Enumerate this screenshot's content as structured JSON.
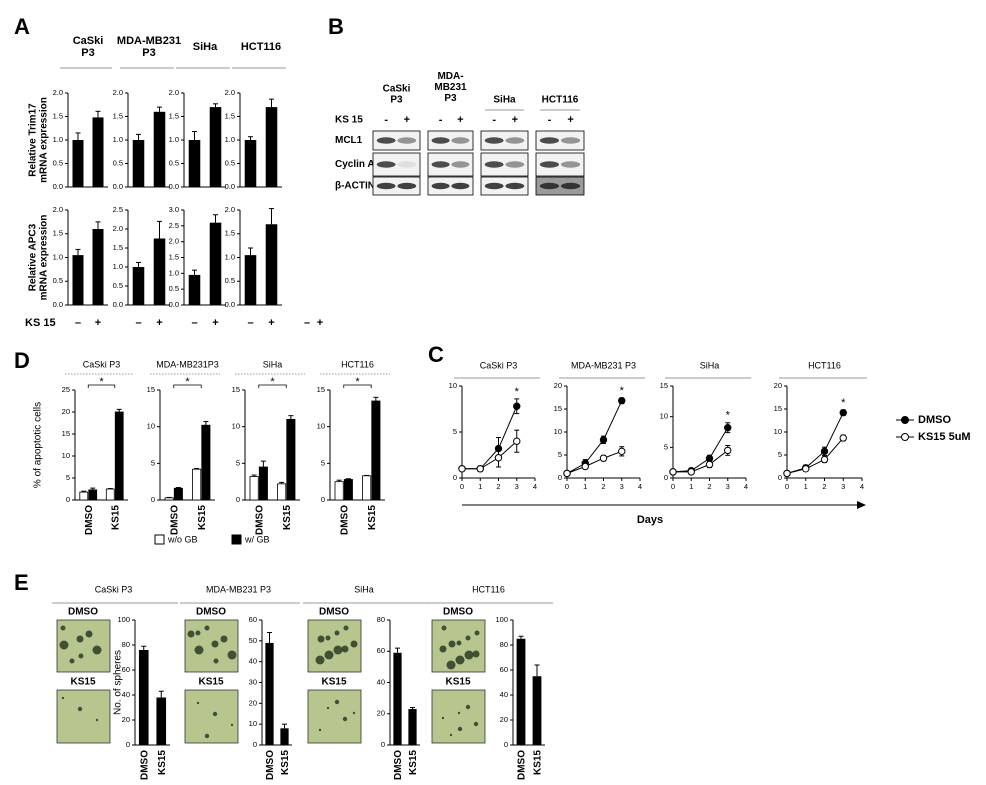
{
  "panel_labels": [
    "A",
    "B",
    "C",
    "D",
    "E"
  ],
  "panel_a": {
    "treatment_label": "KS 15",
    "stray_signs": [
      "–",
      "+"
    ]
  },
  "panel_c": {
    "xlabel": "Days"
  },
  "blot": {
    "columns": [
      "CaSki\nP3",
      "MDA-\nMB231\nP3",
      "SiHa",
      "HCT116"
    ],
    "treatment": "KS 15",
    "signs": [
      "-",
      "+"
    ],
    "rows": [
      "MCL1",
      "Cyclin A",
      "β-ACTIN"
    ]
  },
  "chart_data": [
    {
      "type": "bar",
      "title": "CaSki\nP3",
      "ylabel": "Relative Trim17\nmRNA expression",
      "values": [
        1.0,
        1.48
      ],
      "errors": [
        0.15,
        0.13
      ],
      "color": "#000000",
      "ylim": [
        0,
        2
      ],
      "yticks": [
        {
          "value": 0,
          "label": "0.0"
        },
        0.5,
        {
          "value": 1,
          "label": "1.0"
        },
        1.5,
        {
          "value": 2,
          "label": "2.0"
        }
      ]
    },
    {
      "type": "bar",
      "title": "MDA-MB231\nP3",
      "values": [
        1.0,
        1.6
      ],
      "errors": [
        0.12,
        0.1
      ],
      "color": "#000000",
      "ylim": [
        0,
        2
      ],
      "yticks": [
        {
          "value": 0,
          "label": "0.0"
        },
        0.5,
        {
          "value": 1,
          "label": "1.0"
        },
        1.5,
        {
          "value": 2,
          "label": "2.0"
        }
      ]
    },
    {
      "type": "bar",
      "title": "SiHa",
      "values": [
        1.0,
        1.7
      ],
      "errors": [
        0.18,
        0.07
      ],
      "color": "#000000",
      "ylim": [
        0,
        2
      ],
      "yticks": [
        {
          "value": 0,
          "label": "0.0"
        },
        0.5,
        {
          "value": 1,
          "label": "1.0"
        },
        1.5,
        {
          "value": 2,
          "label": "2.0"
        }
      ]
    },
    {
      "type": "bar",
      "title": "HCT116",
      "values": [
        1.0,
        1.7
      ],
      "errors": [
        0.07,
        0.17
      ],
      "color": "#000000",
      "ylim": [
        0,
        2
      ],
      "yticks": [
        {
          "value": 0,
          "label": "0.0"
        },
        0.5,
        {
          "value": 1,
          "label": "1.0"
        },
        1.5,
        {
          "value": 2,
          "label": "2.0"
        }
      ]
    },
    {
      "type": "bar",
      "ylabel": "Relative APC3\nmRNA expression",
      "categories": [
        "–",
        "+"
      ],
      "values": [
        1.05,
        1.6
      ],
      "errors": [
        0.12,
        0.15
      ],
      "color": "#000000",
      "ylim": [
        0,
        2
      ],
      "yticks": [
        {
          "value": 0,
          "label": "0.0"
        },
        0.5,
        {
          "value": 1,
          "label": "1.0"
        },
        1.5,
        {
          "value": 2,
          "label": "2.0"
        }
      ]
    },
    {
      "type": "bar",
      "categories": [
        "–",
        "+"
      ],
      "values": [
        1.0,
        1.75
      ],
      "errors": [
        0.12,
        0.45
      ],
      "color": "#000000",
      "ylim": [
        0,
        2.5
      ],
      "yticks": [
        {
          "value": 0,
          "label": "0.0"
        },
        0.5,
        {
          "value": 1,
          "label": "1.0"
        },
        1.5,
        {
          "value": 2,
          "label": "2.0"
        },
        2.5
      ]
    },
    {
      "type": "bar",
      "categories": [
        "–",
        "+"
      ],
      "values": [
        0.95,
        2.6
      ],
      "errors": [
        0.15,
        0.25
      ],
      "color": "#000000",
      "ylim": [
        0,
        3
      ],
      "yticks": [
        {
          "value": 0,
          "label": "0.0"
        },
        0.5,
        {
          "value": 1,
          "label": "1.0"
        },
        1.5,
        {
          "value": 2,
          "label": "2.0"
        },
        2.5,
        {
          "value": 3,
          "label": "3.0"
        }
      ]
    },
    {
      "type": "bar",
      "categories": [
        "–",
        "+"
      ],
      "values": [
        1.05,
        1.7
      ],
      "errors": [
        0.15,
        0.33
      ],
      "color": "#000000",
      "ylim": [
        0,
        2
      ],
      "yticks": [
        {
          "value": 0,
          "label": "0.0"
        },
        0.5,
        {
          "value": 1,
          "label": "1.0"
        },
        1.5,
        {
          "value": 2,
          "label": "2.0"
        }
      ]
    },
    {
      "type": "bar",
      "title": "CaSki P3",
      "ylabel": "% of apoptotic cells",
      "annotation": "*",
      "categories": [
        "DMSO",
        "KS15"
      ],
      "series": [
        {
          "name": "w/o GB",
          "color": "#ffffff",
          "values": [
            1.8,
            2.5
          ],
          "errors": [
            0.2,
            0.1
          ]
        },
        {
          "name": "w/  GB",
          "color": "#000000",
          "values": [
            2.3,
            20
          ],
          "errors": [
            0.4,
            0.6
          ]
        }
      ],
      "ylim": [
        0,
        25
      ],
      "yticks": [
        0,
        5,
        10,
        15,
        20,
        25
      ]
    },
    {
      "type": "bar",
      "title": "MDA-MB231P3",
      "annotation": "*",
      "categories": [
        "DMSO",
        "KS15"
      ],
      "series": [
        {
          "name": "w/o GB",
          "color": "#ffffff",
          "values": [
            0.3,
            4.2
          ],
          "errors": [
            0.05,
            0.1
          ]
        },
        {
          "name": "w/  GB",
          "color": "#000000",
          "values": [
            1.6,
            10.2
          ],
          "errors": [
            0.1,
            0.5
          ]
        }
      ],
      "ylim": [
        0,
        15
      ],
      "yticks": [
        0,
        5,
        10,
        15
      ]
    },
    {
      "type": "bar",
      "title": "SiHa",
      "annotation": "*",
      "categories": [
        "DMSO",
        "KS15"
      ],
      "series": [
        {
          "name": "w/o GB",
          "color": "#ffffff",
          "values": [
            3.2,
            2.2
          ],
          "errors": [
            0.2,
            0.2
          ]
        },
        {
          "name": "w/  GB",
          "color": "#000000",
          "values": [
            4.5,
            11
          ],
          "errors": [
            0.8,
            0.5
          ]
        }
      ],
      "ylim": [
        0,
        15
      ],
      "yticks": [
        0,
        5,
        10,
        15
      ]
    },
    {
      "type": "bar",
      "title": "HCT116",
      "annotation": "*",
      "categories": [
        "DMSO",
        "KS15"
      ],
      "series": [
        {
          "name": "w/o GB",
          "color": "#ffffff",
          "values": [
            2.5,
            3.3
          ],
          "errors": [
            0.2,
            0.05
          ]
        },
        {
          "name": "w/  GB",
          "color": "#000000",
          "values": [
            2.8,
            13.5
          ],
          "errors": [
            0.1,
            0.5
          ]
        }
      ],
      "ylim": [
        0,
        15
      ],
      "yticks": [
        0,
        5,
        10,
        15
      ]
    },
    {
      "type": "line",
      "title": "CaSki P3",
      "annotation": "*",
      "x": [
        0,
        1,
        2,
        3
      ],
      "series": [
        {
          "name": "DMSO",
          "color": "#000000",
          "marker_fill": "#000000",
          "values": [
            1,
            1,
            3.2,
            7.8
          ],
          "errors": [
            0.2,
            0.3,
            1.2,
            0.8
          ]
        },
        {
          "name": "KS15 5uM",
          "color": "#000000",
          "marker_fill": "#ffffff",
          "values": [
            1,
            1,
            2.2,
            4
          ],
          "errors": [
            0.1,
            0.2,
            1.0,
            1.2
          ]
        }
      ],
      "xlim": [
        0,
        4
      ],
      "xticks": [
        0,
        1,
        2,
        3,
        4
      ],
      "ylim": [
        0,
        10
      ],
      "yticks": [
        0,
        5,
        10
      ]
    },
    {
      "type": "line",
      "title": "MDA-MB231  P3",
      "annotation": "*",
      "x": [
        0,
        1,
        2,
        3
      ],
      "series": [
        {
          "name": "DMSO",
          "color": "#000000",
          "marker_fill": "#000000",
          "values": [
            1,
            3.2,
            8.3,
            16.8
          ],
          "errors": [
            0.3,
            0.8,
            0.8,
            0.6
          ]
        },
        {
          "name": "KS15 5uM",
          "color": "#000000",
          "marker_fill": "#ffffff",
          "values": [
            1,
            2.5,
            4.3,
            5.8
          ],
          "errors": [
            0.3,
            0.5,
            0.6,
            1.0
          ]
        }
      ],
      "xlim": [
        0,
        4
      ],
      "xticks": [
        0,
        1,
        2,
        3,
        4
      ],
      "ylim": [
        0,
        20
      ],
      "yticks": [
        0,
        5,
        10,
        15,
        20
      ]
    },
    {
      "type": "line",
      "title": "SiHa",
      "annotation": "*",
      "x": [
        0,
        1,
        2,
        3
      ],
      "series": [
        {
          "name": "DMSO",
          "color": "#000000",
          "marker_fill": "#000000",
          "values": [
            1,
            1.2,
            3.2,
            8.2
          ],
          "errors": [
            0.2,
            0.2,
            0.5,
            0.8
          ]
        },
        {
          "name": "KS15 5uM",
          "color": "#000000",
          "marker_fill": "#ffffff",
          "values": [
            1,
            1,
            2.2,
            4.5
          ],
          "errors": [
            0.1,
            0.2,
            0.5,
            0.8
          ]
        }
      ],
      "xlim": [
        0,
        4
      ],
      "xticks": [
        0,
        1,
        2,
        3,
        4
      ],
      "ylim": [
        0,
        15
      ],
      "yticks": [
        0,
        5,
        10,
        15
      ]
    },
    {
      "type": "line",
      "title": "HCT116",
      "annotation": "*",
      "x": [
        0,
        1,
        2,
        3
      ],
      "series": [
        {
          "name": "DMSO",
          "color": "#000000",
          "marker_fill": "#000000",
          "values": [
            1,
            2.2,
            5.8,
            14.2
          ],
          "errors": [
            0.3,
            0.6,
            0.9,
            0.6
          ]
        },
        {
          "name": "KS15 5uM",
          "color": "#000000",
          "marker_fill": "#ffffff",
          "values": [
            1,
            2,
            4,
            8.7
          ],
          "errors": [
            0.2,
            0.5,
            0.6,
            0.6
          ]
        }
      ],
      "xlim": [
        0,
        4
      ],
      "xticks": [
        0,
        1,
        2,
        3,
        4
      ],
      "ylim": [
        0,
        20
      ],
      "yticks": [
        0,
        5,
        10,
        15,
        20
      ]
    },
    {
      "type": "bar",
      "title": "CaSki P3",
      "ylabel": "No. of spheres",
      "categories": [
        "DMSO",
        "KS15"
      ],
      "values": [
        76,
        38
      ],
      "errors": [
        3,
        5
      ],
      "color": "#000000",
      "ylim": [
        0,
        100
      ],
      "yticks": [
        0,
        20,
        40,
        60,
        80,
        100
      ]
    },
    {
      "type": "bar",
      "title": "MDA-MB231  P3",
      "categories": [
        "DMSO",
        "KS15"
      ],
      "values": [
        49,
        8
      ],
      "errors": [
        5,
        2
      ],
      "color": "#000000",
      "ylim": [
        0,
        60
      ],
      "yticks": [
        0,
        10,
        20,
        30,
        40,
        50,
        60
      ]
    },
    {
      "type": "bar",
      "title": "SiHa",
      "categories": [
        "DMSO",
        "KS15"
      ],
      "values": [
        59,
        23
      ],
      "errors": [
        3,
        1
      ],
      "color": "#000000",
      "ylim": [
        0,
        80
      ],
      "yticks": [
        0,
        20,
        40,
        60,
        80
      ]
    },
    {
      "type": "bar",
      "title": "HCT116",
      "categories": [
        "DMSO",
        "KS15"
      ],
      "values": [
        85,
        55
      ],
      "errors": [
        2,
        9
      ],
      "color": "#000000",
      "ylim": [
        0,
        100
      ],
      "yticks": [
        0,
        20,
        40,
        60,
        80,
        100
      ]
    }
  ]
}
